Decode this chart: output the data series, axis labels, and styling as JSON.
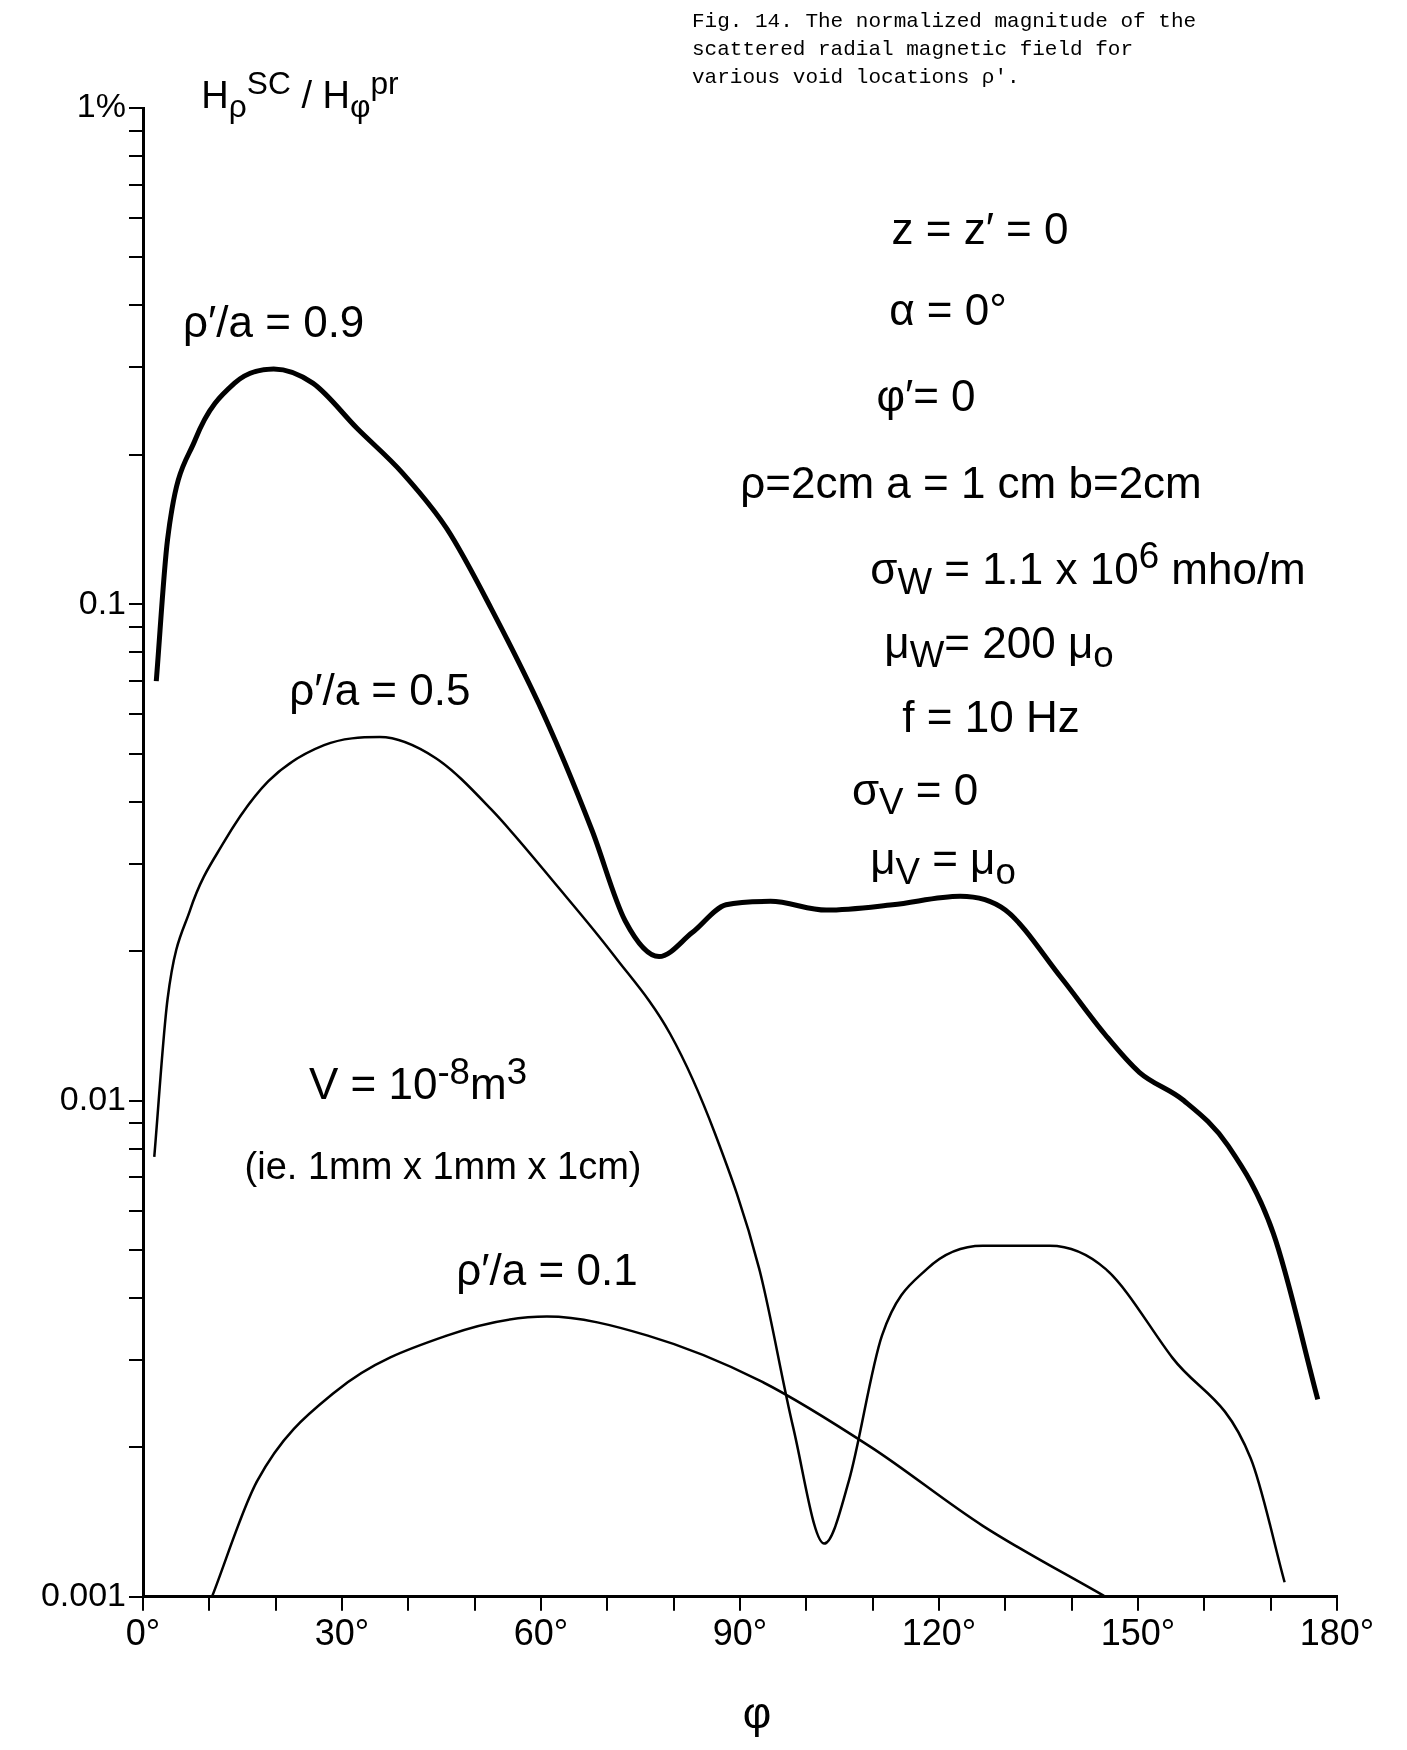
{
  "chart_data": {
    "type": "line",
    "title": "Fig. 14.  The normalized magnitude of the scattered radial magnetic field for various void locations ρ'.",
    "xlabel": "φ",
    "ylabel": "H$_{ρ}$$^{SC}$ / H$_{φ}$$^{pr}$",
    "annotations": [
      "z = z′ = 0",
      "α = 0°",
      "φ′= 0",
      "ρ=2cm   a = 1 cm   b=2cm",
      "σ$_{W}$ = 1.1 x 10$^{6}$ mho/m",
      "μ$_{W}$= 200 μ$_{o}$",
      "f = 10 Hz",
      "σ$_{V}$ = 0",
      "μ$_{V}$ = μ$_{o}$",
      "V = 10$^{-8}$m$^{3}$",
      "(ie. 1mm x 1mm x 1cm)"
    ],
    "series": [
      {
        "name": "ρ′/a = 0.9",
        "color": "#000000",
        "x": [
          2,
          3.7,
          7.9,
          13.8,
          19.7,
          25.6,
          32.3,
          39.1,
          45.8,
          52.5,
          60.9,
          67.7,
          72.7,
          77.8,
          82.8,
          87.9,
          94.6,
          103,
          113,
          123.2,
          130,
          138.4,
          145,
          150.2,
          156.9,
          163.6,
          170.4,
          177.1
        ],
        "values": [
          0.07,
          0.135,
          0.215,
          0.279,
          0.298,
          0.279,
          0.226,
          0.184,
          0.142,
          0.098,
          0.058,
          0.035,
          0.023,
          0.0195,
          0.0218,
          0.0248,
          0.0252,
          0.0242,
          0.0248,
          0.0258,
          0.0242,
          0.0177,
          0.0136,
          0.0114,
          0.01,
          0.0081,
          0.0054,
          0.0025
        ]
      },
      {
        "name": "ρ′/a = 0.5",
        "color": "#000000",
        "x": [
          1.7,
          3.7,
          7.1,
          12.1,
          18.9,
          27.3,
          35.7,
          44.1,
          52.5,
          62.6,
          71,
          79.5,
          86.2,
          92.9,
          98,
          102.7,
          106.4,
          111.4,
          118.2,
          126.6,
          136.7,
          145.1,
          155.2,
          167,
          172.1
        ],
        "values": [
          0.0077,
          0.016,
          0.0242,
          0.033,
          0.044,
          0.052,
          0.054,
          0.049,
          0.0386,
          0.0269,
          0.0196,
          0.0136,
          0.0086,
          0.00458,
          0.0022,
          0.00128,
          0.00171,
          0.00336,
          0.00458,
          0.0051,
          0.0051,
          0.00458,
          0.00303,
          0.0019,
          0.00107
        ]
      },
      {
        "name": "ρ′/a = 0.1",
        "color": "#000000",
        "x": [
          10.4,
          17.2,
          29,
          45.8,
          60.9,
          76.1,
          92.9,
          109.8,
          126.6,
          145.1
        ],
        "values": [
          0.001,
          0.00171,
          0.00259,
          0.00336,
          0.00367,
          0.00336,
          0.00273,
          0.002,
          0.00139,
          0.001
        ]
      }
    ],
    "log": "y",
    "xlim": [
      0,
      180
    ],
    "xticks": [
      {
        "value": 0,
        "label": "0°"
      },
      {
        "value": 10,
        "label": null
      },
      {
        "value": 20,
        "label": null
      },
      {
        "value": 30,
        "label": "30°"
      },
      {
        "value": 40,
        "label": null
      },
      {
        "value": 50,
        "label": null
      },
      {
        "value": 60,
        "label": "60°"
      },
      {
        "value": 70,
        "label": null
      },
      {
        "value": 80,
        "label": null
      },
      {
        "value": 90,
        "label": "90°"
      },
      {
        "value": 100,
        "label": null
      },
      {
        "value": 110,
        "label": null
      },
      {
        "value": 120,
        "label": "120°"
      },
      {
        "value": 130,
        "label": null
      },
      {
        "value": 140,
        "label": null
      },
      {
        "value": 150,
        "label": "150°"
      },
      {
        "value": 160,
        "label": null
      },
      {
        "value": 170,
        "label": null
      },
      {
        "value": 180,
        "label": "180°"
      }
    ],
    "ylim": [
      0.001,
      1
    ],
    "yticks": [
      0.001,
      {
        "value": 0.002,
        "label": null
      },
      {
        "value": 0.003,
        "label": null
      },
      {
        "value": 0.004,
        "label": null
      },
      {
        "value": 0.005,
        "label": null
      },
      {
        "value": 0.006,
        "label": null
      },
      {
        "value": 0.007,
        "label": null
      },
      {
        "value": 0.008,
        "label": null
      },
      {
        "value": 0.009,
        "label": null
      },
      0.01,
      {
        "value": 0.02,
        "label": null
      },
      {
        "value": 0.03,
        "label": null
      },
      {
        "value": 0.04,
        "label": null
      },
      {
        "value": 0.05,
        "label": null
      },
      {
        "value": 0.06,
        "label": null
      },
      {
        "value": 0.07,
        "label": null
      },
      {
        "value": 0.08,
        "label": null
      },
      {
        "value": 0.09,
        "label": null
      },
      0.1,
      {
        "value": 0.2,
        "label": null
      },
      {
        "value": 0.3,
        "label": null
      },
      {
        "value": 0.4,
        "label": null
      },
      {
        "value": 0.5,
        "label": null
      },
      {
        "value": 0.6,
        "label": null
      },
      {
        "value": 0.7,
        "label": null
      },
      {
        "value": 0.8,
        "label": null
      },
      {
        "value": 0.9,
        "label": null
      },
      {
        "value": 1,
        "label": "1%"
      }
    ],
    "grid": false,
    "legend": false,
    "marker": "none",
    "line_style": "solid"
  }
}
